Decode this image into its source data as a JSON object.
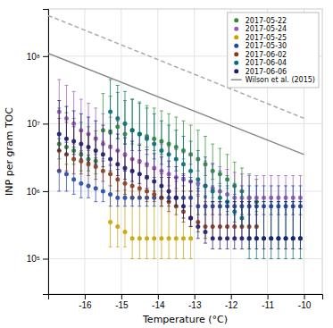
{
  "chart_data": {
    "type": "scatter",
    "x_label": "Temperature (°C)",
    "y_label": "INP per gram TOC",
    "log": "y",
    "grid": true,
    "legend": "upper right",
    "xlim": [
      -17,
      -9.5
    ],
    "ylim": [
      30000.0,
      500000000.0
    ],
    "xticks": [
      -16,
      -15,
      -14,
      -13,
      -12,
      -11,
      -10
    ],
    "yticks": [
      {
        "value": 100000,
        "label": "10⁵"
      },
      {
        "value": 1000000,
        "label": "10⁶"
      },
      {
        "value": 10000000,
        "label": "10⁷"
      },
      {
        "value": 100000000,
        "label": "10⁸"
      }
    ],
    "series": [
      {
        "name": "2017-05-22",
        "type": "scatter",
        "marker": "circle",
        "color": "#2e8b2e",
        "x": [
          -16.7,
          -16.5,
          -16.3,
          -16.1,
          -15.9,
          -15.7,
          -15.5,
          -15.3,
          -15.1,
          -14.9,
          -14.7,
          -14.5,
          -14.3,
          -14.1,
          -13.9,
          -13.7,
          -13.5,
          -13.3,
          -13.1,
          -12.9,
          -12.7,
          -12.5,
          -12.3,
          -12.1,
          -11.9,
          -11.7,
          -11.5,
          -11.3
        ],
        "values": [
          5000000.0,
          4500000.0,
          4000000.0,
          3500000.0,
          3000000.0,
          2800000.0,
          8000000.0,
          7500000.0,
          9000000.0,
          7000000.0,
          8000000.0,
          7000000.0,
          6500000.0,
          6000000.0,
          5500000.0,
          5000000.0,
          4500000.0,
          4000000.0,
          3500000.0,
          3000000.0,
          2500000.0,
          2000000.0,
          1800000.0,
          1500000.0,
          1200000.0,
          1000000.0,
          800000.0,
          700000.0
        ],
        "yerr_lo": [
          2000000.0,
          2000000.0,
          1500000.0,
          1500000.0,
          1000000.0,
          1000000.0,
          3000000.0,
          3000000.0,
          3000000.0,
          2000000.0,
          3000000.0,
          2000000.0,
          2000000.0,
          2000000.0,
          2000000.0,
          1500000.0,
          1500000.0,
          1000000.0,
          1000000.0,
          1000000.0,
          800000.0,
          500000.0,
          500000.0,
          400000.0,
          300000.0,
          300000.0,
          200000.0,
          200000.0
        ],
        "yerr_hi": [
          12000000.0,
          10000000.0,
          8000000.0,
          7000000.0,
          6000000.0,
          5000000.0,
          20000000.0,
          18000000.0,
          20000000.0,
          15000000.0,
          15000000.0,
          14000000.0,
          12000000.0,
          11000000.0,
          10000000.0,
          9000000.0,
          8000000.0,
          7000000.0,
          6000000.0,
          5000000.0,
          4000000.0,
          3000000.0,
          2500000.0,
          2000000.0,
          1500000.0,
          1200000.0,
          1000000.0,
          800000.0
        ]
      },
      {
        "name": "2017-05-24",
        "type": "scatter",
        "marker": "circle",
        "color": "#9b59b6",
        "x": [
          -16.7,
          -16.5,
          -16.3,
          -16.1,
          -15.9,
          -15.7,
          -15.5,
          -15.3,
          -15.1,
          -14.9,
          -14.7,
          -14.5,
          -14.3,
          -14.1,
          -13.9,
          -13.7,
          -13.5,
          -13.3,
          -13.1,
          -12.9,
          -12.7,
          -12.5,
          -12.3,
          -12.1,
          -11.9,
          -11.7,
          -11.5,
          -11.3,
          -11.1,
          -10.9,
          -10.7,
          -10.5,
          -10.3,
          -10.1
        ],
        "values": [
          15000000.0,
          12000000.0,
          10000000.0,
          8000000.0,
          7000000.0,
          6000000.0,
          5000000.0,
          4500000.0,
          4000000.0,
          3500000.0,
          3000000.0,
          2800000.0,
          2500000.0,
          2200000.0,
          2000000.0,
          1800000.0,
          1600000.0,
          1500000.0,
          1400000.0,
          1300000.0,
          1200000.0,
          1100000.0,
          1000000.0,
          900000.0,
          800000.0,
          800000.0,
          800000.0,
          800000.0,
          800000.0,
          800000.0,
          800000.0,
          800000.0,
          800000.0,
          800000.0
        ],
        "yerr_lo": [
          8000000.0,
          6000000.0,
          5000000.0,
          4000000.0,
          3000000.0,
          2500000.0,
          2000000.0,
          2000000.0,
          1500000.0,
          1500000.0,
          1000000.0,
          1000000.0,
          800000.0,
          800000.0,
          800000.0,
          600000.0,
          500000.0,
          500000.0,
          400000.0,
          400000.0,
          400000.0,
          300000.0,
          300000.0,
          300000.0,
          200000.0,
          200000.0,
          200000.0,
          200000.0,
          200000.0,
          200000.0,
          200000.0,
          200000.0,
          200000.0,
          200000.0
        ],
        "yerr_hi": [
          30000000.0,
          25000000.0,
          20000000.0,
          15000000.0,
          13000000.0,
          11000000.0,
          9000000.0,
          8000000.0,
          7000000.0,
          6000000.0,
          5000000.0,
          4500000.0,
          4000000.0,
          3500000.0,
          3000000.0,
          2800000.0,
          2500000.0,
          2200000.0,
          2000000.0,
          1800000.0,
          1600000.0,
          1500000.0,
          1300000.0,
          1200000.0,
          1100000.0,
          1000000.0,
          900000.0,
          900000.0,
          900000.0,
          900000.0,
          900000.0,
          900000.0,
          900000.0,
          900000.0
        ]
      },
      {
        "name": "2017-05-25",
        "type": "scatter",
        "marker": "circle",
        "color": "#c8a000",
        "x": [
          -15.3,
          -15.1,
          -14.9,
          -14.7,
          -14.5,
          -14.3,
          -14.1,
          -13.9,
          -13.7,
          -13.5,
          -13.3,
          -13.1
        ],
        "values": [
          350000.0,
          300000.0,
          250000.0,
          200000.0,
          200000.0,
          200000.0,
          200000.0,
          200000.0,
          200000.0,
          200000.0,
          200000.0,
          200000.0
        ],
        "yerr_lo": [
          200000.0,
          150000.0,
          100000.0,
          100000.0,
          100000.0,
          100000.0,
          100000.0,
          100000.0,
          100000.0,
          100000.0,
          100000.0,
          100000.0
        ],
        "yerr_hi": [
          1500000.0,
          1200000.0,
          800000.0,
          800000.0,
          800000.0,
          800000.0,
          800000.0,
          800000.0,
          800000.0,
          800000.0,
          800000.0,
          800000.0
        ]
      },
      {
        "name": "2017-05-30",
        "type": "scatter",
        "marker": "circle",
        "color": "#2244aa",
        "x": [
          -16.7,
          -16.5,
          -16.3,
          -16.1,
          -15.9,
          -15.7,
          -15.5,
          -15.3,
          -15.1,
          -14.9,
          -14.7,
          -14.5,
          -14.3,
          -14.1,
          -13.9,
          -13.7,
          -13.5,
          -13.3,
          -13.1,
          -12.9,
          -12.7,
          -12.5,
          -12.3,
          -12.1,
          -11.9,
          -11.7,
          -11.5,
          -11.3,
          -11.1,
          -10.9,
          -10.7,
          -10.5,
          -10.3,
          -10.1
        ],
        "values": [
          2000000.0,
          1800000.0,
          1500000.0,
          1300000.0,
          1200000.0,
          1100000.0,
          1000000.0,
          900000.0,
          800000.0,
          800000.0,
          800000.0,
          800000.0,
          800000.0,
          800000.0,
          800000.0,
          800000.0,
          800000.0,
          800000.0,
          800000.0,
          600000.0,
          600000.0,
          600000.0,
          600000.0,
          600000.0,
          600000.0,
          600000.0,
          600000.0,
          600000.0,
          600000.0,
          600000.0,
          600000.0,
          600000.0,
          600000.0,
          600000.0
        ],
        "yerr_lo": [
          1000000.0,
          800000.0,
          600000.0,
          500000.0,
          400000.0,
          400000.0,
          300000.0,
          300000.0,
          200000.0,
          200000.0,
          200000.0,
          200000.0,
          200000.0,
          200000.0,
          200000.0,
          200000.0,
          200000.0,
          200000.0,
          200000.0,
          150000.0,
          150000.0,
          150000.0,
          150000.0,
          150000.0,
          150000.0,
          150000.0,
          150000.0,
          150000.0,
          150000.0,
          150000.0,
          150000.0,
          150000.0,
          150000.0,
          150000.0
        ],
        "yerr_hi": [
          4000000.0,
          3500000.0,
          3000000.0,
          2500000.0,
          2200000.0,
          2000000.0,
          1800000.0,
          1500000.0,
          1300000.0,
          1200000.0,
          1100000.0,
          1000000.0,
          900000.0,
          800000.0,
          800000.0,
          800000.0,
          800000.0,
          800000.0,
          800000.0,
          600000.0,
          600000.0,
          600000.0,
          600000.0,
          600000.0,
          600000.0,
          600000.0,
          600000.0,
          600000.0,
          600000.0,
          600000.0,
          600000.0,
          600000.0,
          600000.0,
          600000.0
        ]
      },
      {
        "name": "2017-06-02",
        "type": "scatter",
        "marker": "circle",
        "color": "#8b3a1a",
        "x": [
          -16.7,
          -16.5,
          -16.3,
          -16.1,
          -15.9,
          -15.7,
          -15.5,
          -15.3,
          -15.1,
          -14.9,
          -14.7,
          -14.5,
          -14.3,
          -14.1,
          -13.9,
          -13.7,
          -13.5,
          -13.3,
          -13.1,
          -12.9,
          -12.7,
          -12.5,
          -12.3,
          -12.1,
          -11.9,
          -11.7,
          -11.5,
          -11.3
        ],
        "values": [
          4000000.0,
          3500000.0,
          3000000.0,
          2800000.0,
          2500000.0,
          2300000.0,
          2000000.0,
          1800000.0,
          1500000.0,
          1300000.0,
          1200000.0,
          1100000.0,
          1000000.0,
          900000.0,
          800000.0,
          700000.0,
          600000.0,
          500000.0,
          400000.0,
          350000.0,
          300000.0,
          300000.0,
          300000.0,
          300000.0,
          300000.0,
          300000.0,
          300000.0,
          300000.0
        ],
        "yerr_lo": [
          2000000.0,
          1500000.0,
          1200000.0,
          1000000.0,
          800000.0,
          800000.0,
          600000.0,
          600000.0,
          500000.0,
          400000.0,
          400000.0,
          300000.0,
          300000.0,
          200000.0,
          200000.0,
          200000.0,
          150000.0,
          150000.0,
          100000.0,
          100000.0,
          100000.0,
          100000.0,
          100000.0,
          100000.0,
          100000.0,
          100000.0,
          100000.0,
          100000.0
        ],
        "yerr_hi": [
          8000000.0,
          7000000.0,
          6000000.0,
          5000000.0,
          4500000.0,
          4000000.0,
          3500000.0,
          3000000.0,
          2500000.0,
          2000000.0,
          1800000.0,
          1500000.0,
          1300000.0,
          1200000.0,
          1000000.0,
          900000.0,
          800000.0,
          700000.0,
          600000.0,
          500000.0,
          400000.0,
          400000.0,
          400000.0,
          400000.0,
          400000.0,
          400000.0,
          400000.0,
          400000.0
        ]
      },
      {
        "name": "2017-06-04",
        "type": "scatter",
        "marker": "circle",
        "color": "#007070",
        "x": [
          -15.3,
          -15.1,
          -14.9,
          -14.7,
          -14.5,
          -14.3,
          -14.1,
          -13.9,
          -13.7,
          -13.5,
          -13.3,
          -13.1,
          -12.9,
          -12.7,
          -12.5,
          -12.3,
          -12.1,
          -11.9,
          -11.7,
          -11.5,
          -11.3,
          -11.1,
          -10.9,
          -10.7,
          -10.5,
          -10.3,
          -10.1
        ],
        "values": [
          15000000.0,
          12000000.0,
          10000000.0,
          8000000.0,
          7000000.0,
          6000000.0,
          5000000.0,
          4000000.0,
          3500000.0,
          3000000.0,
          2500000.0,
          2000000.0,
          1500000.0,
          1200000.0,
          1000000.0,
          800000.0,
          700000.0,
          500000.0,
          400000.0,
          200000.0,
          200000.0,
          200000.0,
          200000.0,
          200000.0,
          200000.0,
          200000.0,
          200000.0
        ],
        "yerr_lo": [
          8000000.0,
          6000000.0,
          5000000.0,
          4000000.0,
          3000000.0,
          2500000.0,
          2000000.0,
          1500000.0,
          1200000.0,
          1000000.0,
          800000.0,
          600000.0,
          500000.0,
          400000.0,
          300000.0,
          200000.0,
          200000.0,
          150000.0,
          100000.0,
          100000.0,
          100000.0,
          100000.0,
          100000.0,
          100000.0,
          100000.0,
          100000.0,
          100000.0
        ],
        "yerr_hi": [
          30000000.0,
          25000000.0,
          20000000.0,
          15000000.0,
          13000000.0,
          11000000.0,
          9000000.0,
          7000000.0,
          6000000.0,
          5000000.0,
          4000000.0,
          3500000.0,
          2500000.0,
          2000000.0,
          1500000.0,
          1200000.0,
          1000000.0,
          800000.0,
          600000.0,
          500000.0,
          500000.0,
          500000.0,
          500000.0,
          500000.0,
          500000.0,
          500000.0,
          500000.0
        ]
      },
      {
        "name": "2017-06-06",
        "type": "scatter",
        "marker": "circle",
        "color": "#1a1a6e",
        "x": [
          -16.7,
          -16.5,
          -16.3,
          -16.1,
          -15.9,
          -15.7,
          -15.5,
          -15.3,
          -15.1,
          -14.9,
          -14.7,
          -14.5,
          -14.3,
          -14.1,
          -13.9,
          -13.7,
          -13.5,
          -13.3,
          -13.1,
          -12.9,
          -12.7,
          -12.5,
          -12.3,
          -12.1,
          -11.9,
          -11.7,
          -11.5,
          -11.3,
          -11.1,
          -10.9,
          -10.7,
          -10.5,
          -10.3,
          -10.1
        ],
        "values": [
          7000000.0,
          6000000.0,
          5500000.0,
          5000000.0,
          4500000.0,
          4000000.0,
          3500000.0,
          3000000.0,
          2500000.0,
          2200000.0,
          2000000.0,
          1800000.0,
          1600000.0,
          1400000.0,
          1200000.0,
          1000000.0,
          800000.0,
          600000.0,
          400000.0,
          300000.0,
          250000.0,
          200000.0,
          200000.0,
          200000.0,
          200000.0,
          200000.0,
          200000.0,
          200000.0,
          200000.0,
          200000.0,
          200000.0,
          200000.0,
          200000.0,
          200000.0
        ],
        "yerr_lo": [
          3000000.0,
          2500000.0,
          2000000.0,
          2000000.0,
          1800000.0,
          1500000.0,
          1200000.0,
          1000000.0,
          800000.0,
          700000.0,
          600000.0,
          500000.0,
          500000.0,
          400000.0,
          400000.0,
          300000.0,
          200000.0,
          200000.0,
          100000.0,
          100000.0,
          80000.0,
          60000.0,
          60000.0,
          60000.0,
          60000.0,
          60000.0,
          60000.0,
          60000.0,
          60000.0,
          60000.0,
          60000.0,
          60000.0,
          60000.0,
          60000.0
        ],
        "yerr_hi": [
          15000000.0,
          12000000.0,
          10000000.0,
          9000000.0,
          8000000.0,
          7000000.0,
          6000000.0,
          5000000.0,
          4500000.0,
          4000000.0,
          3500000.0,
          3000000.0,
          2500000.0,
          2200000.0,
          2000000.0,
          1800000.0,
          1500000.0,
          1200000.0,
          1000000.0,
          800000.0,
          600000.0,
          500000.0,
          500000.0,
          500000.0,
          500000.0,
          500000.0,
          500000.0,
          500000.0,
          500000.0,
          500000.0,
          500000.0,
          500000.0,
          500000.0,
          500000.0
        ]
      },
      {
        "name": "Wilson et al. (2015)",
        "type": "line",
        "line_style": "solid",
        "color": "#888888",
        "x": [
          -17,
          -10
        ],
        "values": [
          110000000.0,
          3500000.0
        ]
      },
      {
        "type": "line",
        "line_style": "dashed",
        "color": "#aaaaaa",
        "x": [
          -17,
          -10
        ],
        "values": [
          400000000.0,
          12000000.0
        ]
      }
    ]
  }
}
